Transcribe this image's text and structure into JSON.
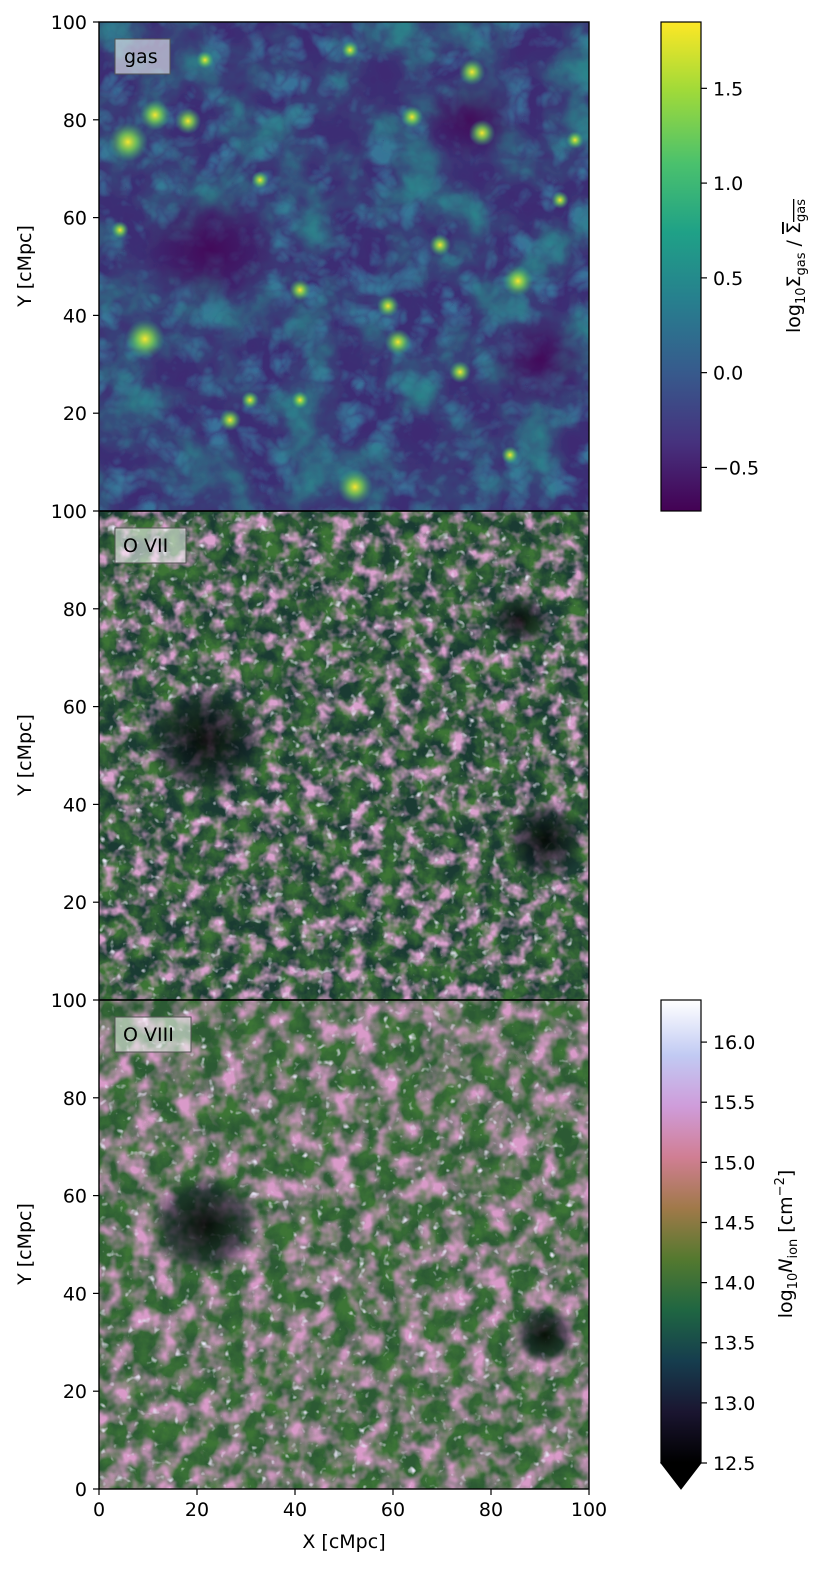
{
  "chart_data": [
    {
      "type": "heatmap",
      "panel_label": "gas",
      "colormap": "viridis",
      "xlim": [
        0,
        100
      ],
      "ylim": [
        0,
        100
      ],
      "yticks": [
        20,
        40,
        60,
        80,
        100
      ],
      "ylabel": "Y [cMpc]",
      "colorbar": {
        "label_main": "log",
        "label_sub1": "10",
        "label_sym": "Σ",
        "label_sub2": "gas",
        "label_sep": " / ",
        "label_bar": "Σ",
        "label_sub3": "gas",
        "range": [
          -0.73,
          1.85
        ],
        "ticks": [
          "−0.5",
          "0.0",
          "0.5",
          "1.0",
          "1.5"
        ],
        "tick_values": [
          -0.5,
          0.0,
          0.5,
          1.0,
          1.5
        ]
      }
    },
    {
      "type": "heatmap",
      "panel_label": "O VII",
      "colormap": "cubehelix",
      "xlim": [
        0,
        100
      ],
      "ylim": [
        0,
        100
      ],
      "yticks": [
        20,
        40,
        60,
        80,
        100
      ],
      "ylabel": "Y [cMpc]"
    },
    {
      "type": "heatmap",
      "panel_label": "O VIII",
      "colormap": "cubehelix",
      "xlim": [
        0,
        100
      ],
      "ylim": [
        0,
        100
      ],
      "xticks": [
        0,
        20,
        40,
        60,
        80,
        100
      ],
      "yticks": [
        0,
        20,
        40,
        60,
        80,
        100
      ],
      "xlabel": "X [cMpc]",
      "ylabel": "Y [cMpc]",
      "colorbar": {
        "label_main": "log",
        "label_sub1": "10",
        "label_sym": "N",
        "label_sub2": "ion",
        "label_unit": " [cm",
        "label_sup": "−2",
        "label_close": "]",
        "range": [
          12.5,
          16.35
        ],
        "extend": "min",
        "ticks": [
          "12.5",
          "13.0",
          "13.5",
          "14.0",
          "14.5",
          "15.0",
          "15.5",
          "16.0"
        ],
        "tick_values": [
          12.5,
          13.0,
          13.5,
          14.0,
          14.5,
          15.0,
          15.5,
          16.0
        ]
      }
    }
  ],
  "colors": {
    "viridis": [
      "#440154",
      "#46327e",
      "#365c8d",
      "#277f8e",
      "#1fa187",
      "#4ac16d",
      "#a0da39",
      "#fde725"
    ],
    "cubehelix": [
      "#000000",
      "#1a1530",
      "#163d4e",
      "#1f6642",
      "#54792f",
      "#a07949",
      "#d07e93",
      "#cf9cda",
      "#c1caf3",
      "#ffffff"
    ]
  }
}
